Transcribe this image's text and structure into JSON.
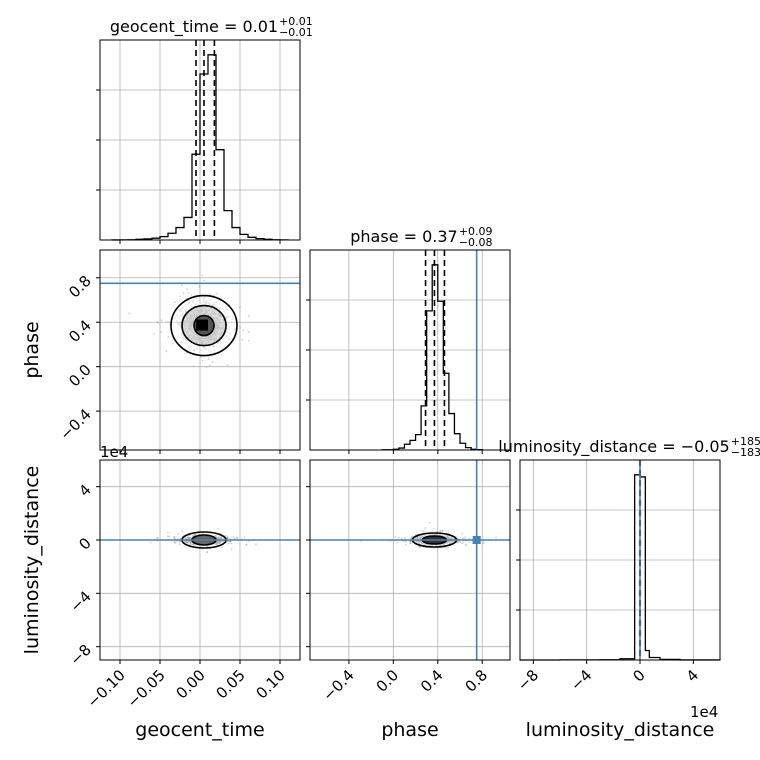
{
  "chart_data": {
    "type": "corner",
    "parameters": [
      "geocent_time",
      "phase",
      "luminosity_distance"
    ],
    "truths": {
      "phase": 0.75,
      "luminosity_distance": 0
    },
    "colors": {
      "truth": "#4682b4",
      "hist": "#000000",
      "grid": "#b0b0b0",
      "points": "#7f7f7f"
    },
    "titles": [
      {
        "param": "geocent_time",
        "base": "geocent_time = 0.01",
        "sup": "+0.01",
        "sub": "−0.01"
      },
      {
        "param": "phase",
        "base": "phase = 0.37",
        "sup": "+0.09",
        "sub": "−0.08"
      },
      {
        "param": "luminosity_distance",
        "base": "luminosity_distance = −0.05",
        "sup": "+185.25",
        "sub": "−183.08"
      }
    ],
    "ranges": {
      "geocent_time": [
        -0.125,
        0.125
      ],
      "phase": [
        -0.75,
        1.05
      ],
      "luminosity_distance": [
        -90000,
        60000
      ]
    },
    "ticks": {
      "geocent_time": {
        "values": [
          -0.1,
          -0.05,
          0.0,
          0.05,
          0.1
        ],
        "labels": [
          "−0.10",
          "−0.05",
          "0.00",
          "0.05",
          "0.10"
        ]
      },
      "phase": {
        "values": [
          -0.4,
          0.0,
          0.4,
          0.8
        ],
        "labels": [
          "−0.4",
          "0.0",
          "0.4",
          "0.8"
        ]
      },
      "luminosity_distance": {
        "values": [
          -80000,
          -40000,
          0,
          40000
        ],
        "labels": [
          "−8",
          "−4",
          "0",
          "4"
        ]
      }
    },
    "exponent_label": "1e4",
    "histograms": {
      "geocent_time": {
        "edges": [
          -0.11,
          -0.1,
          -0.09,
          -0.08,
          -0.07,
          -0.06,
          -0.05,
          -0.04,
          -0.03,
          -0.02,
          -0.01,
          0.0,
          0.01,
          0.02,
          0.03,
          0.04,
          0.05,
          0.06,
          0.07,
          0.08,
          0.09,
          0.1,
          0.11
        ],
        "counts": [
          0.2,
          0.4,
          1,
          3,
          5,
          8,
          15,
          30,
          55,
          100,
          380,
          735,
          820,
          400,
          130,
          55,
          25,
          12,
          6,
          3,
          1,
          0.5
        ],
        "quantiles": [
          -0.005,
          0.005,
          0.018
        ]
      },
      "phase": {
        "edges": [
          -0.1,
          0.0,
          0.05,
          0.1,
          0.15,
          0.2,
          0.25,
          0.3,
          0.35,
          0.4,
          0.45,
          0.5,
          0.55,
          0.6,
          0.65,
          0.7,
          0.75,
          0.8
        ],
        "counts": [
          2,
          8,
          20,
          60,
          100,
          160,
          460,
          1450,
          1930,
          1550,
          800,
          380,
          170,
          70,
          25,
          8,
          3
        ],
        "quantiles": [
          0.29,
          0.37,
          0.46
        ]
      },
      "luminosity_distance": {
        "edges": [
          -90000,
          -60000,
          -30000,
          -15000,
          -4000,
          0,
          4000,
          7000,
          15000,
          30000,
          60000
        ],
        "counts": [
          0.1,
          0.5,
          1,
          6,
          880,
          870,
          45,
          12,
          3,
          0.2
        ],
        "quantiles": [
          -183,
          0,
          185
        ]
      }
    },
    "ylabels_diag": []
  }
}
